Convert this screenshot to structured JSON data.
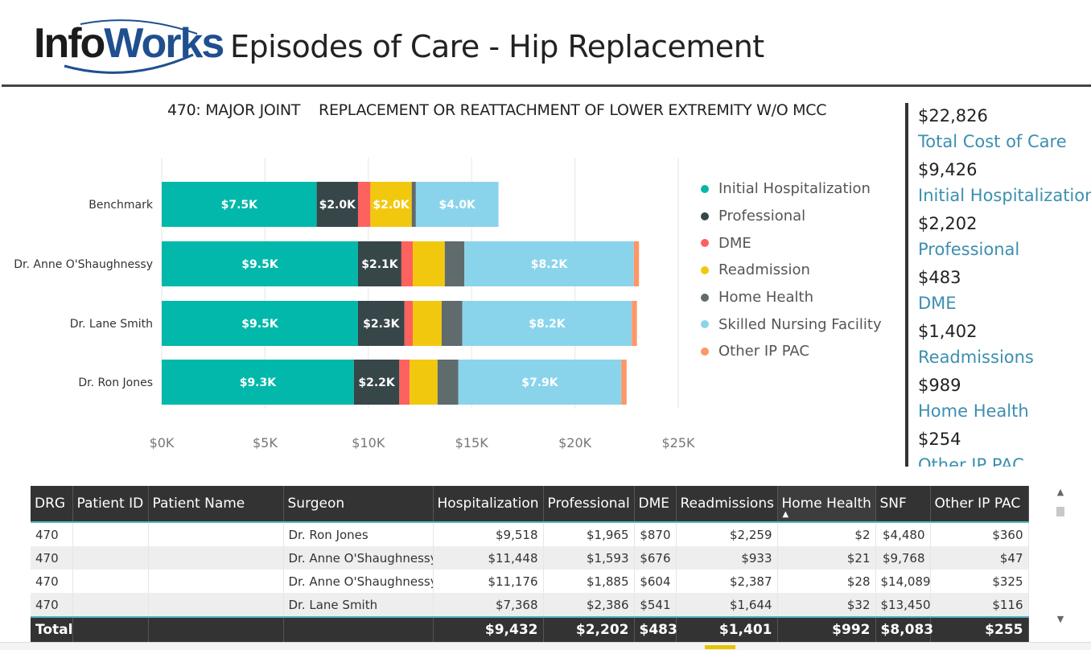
{
  "header": {
    "logo_text_a": "Info",
    "logo_text_b": "Works",
    "title": "Episodes of Care - Hip Replacement"
  },
  "chart": {
    "title": "470: MAJOR JOINT    REPLACEMENT OR REATTACHMENT OF LOWER EXTREMITY W/O MCC"
  },
  "chart_data": {
    "type": "bar",
    "orientation": "horizontal",
    "stacked": true,
    "title": "470: MAJOR JOINT    REPLACEMENT OR REATTACHMENT OF LOWER EXTREMITY W/O MCC",
    "categories": [
      "Benchmark",
      "Dr. Anne O'Shaughnessy",
      "Dr. Lane Smith",
      "Dr. Ron Jones"
    ],
    "xlim": [
      0,
      25000
    ],
    "ticks": [
      0,
      5000,
      10000,
      15000,
      20000,
      25000
    ],
    "tick_labels": [
      "$0K",
      "$5K",
      "$10K",
      "$15K",
      "$20K",
      "$25K"
    ],
    "grid": true,
    "legend_position": "right",
    "series": [
      {
        "name": "Initial Hospitalization",
        "color": "#01b8aa",
        "values": [
          7500,
          9500,
          9500,
          9300
        ],
        "labels": [
          "$7.5K",
          "$9.5K",
          "$9.5K",
          "$9.3K"
        ]
      },
      {
        "name": "Professional",
        "color": "#374649",
        "values": [
          2000,
          2100,
          2250,
          2200
        ],
        "labels": [
          "$2.0K",
          "$2.1K",
          "$2.3K",
          "$2.2K"
        ]
      },
      {
        "name": "DME",
        "color": "#fd625e",
        "values": [
          600,
          550,
          400,
          500
        ],
        "labels": [
          "",
          "",
          "",
          ""
        ]
      },
      {
        "name": "Readmission",
        "color": "#f2c80f",
        "values": [
          2000,
          1550,
          1400,
          1350
        ],
        "labels": [
          "$2.0K",
          "",
          "",
          ""
        ]
      },
      {
        "name": "Home Health",
        "color": "#5f6b6d",
        "values": [
          200,
          950,
          1000,
          1000
        ],
        "labels": [
          "",
          "",
          "",
          ""
        ]
      },
      {
        "name": "Skilled Nursing Facility",
        "color": "#8ad4eb",
        "values": [
          4000,
          8200,
          8200,
          7900
        ],
        "labels": [
          "$4.0K",
          "$8.2K",
          "$8.2K",
          "$7.9K"
        ]
      },
      {
        "name": "Other IP PAC",
        "color": "#fe9666",
        "values": [
          0,
          250,
          250,
          250
        ],
        "labels": [
          "",
          "",
          "",
          ""
        ]
      }
    ]
  },
  "kpis": [
    {
      "value": "$22,826",
      "label": "Total Cost of Care"
    },
    {
      "value": "$9,426",
      "label": "Initial Hospitalization"
    },
    {
      "value": "$2,202",
      "label": "Professional"
    },
    {
      "value": "$483",
      "label": "DME"
    },
    {
      "value": "$1,402",
      "label": "Readmissions"
    },
    {
      "value": "$989",
      "label": "Home Health"
    },
    {
      "value": "$254",
      "label": "Other IP PAC"
    }
  ],
  "table": {
    "columns": [
      "DRG",
      "Patient ID",
      "Patient Name",
      "Surgeon",
      "Hospitalization",
      "Professional",
      "DME",
      "Readmissions",
      "Home Health",
      "SNF",
      "Other IP PAC"
    ],
    "sorted_column": "Home Health",
    "rows": [
      [
        "470",
        "",
        "",
        "Dr. Ron Jones",
        "$9,518",
        "$1,965",
        "$870",
        "$2,259",
        "$2",
        "$4,480",
        "$360"
      ],
      [
        "470",
        "",
        "",
        "Dr. Anne O'Shaughnessy",
        "$11,448",
        "$1,593",
        "$676",
        "$933",
        "$21",
        "$9,768",
        "$47"
      ],
      [
        "470",
        "",
        "",
        "Dr. Anne O'Shaughnessy",
        "$11,176",
        "$1,885",
        "$604",
        "$2,387",
        "$28",
        "$14,089",
        "$325"
      ],
      [
        "470",
        "",
        "",
        "Dr. Lane Smith",
        "$7,368",
        "$2,386",
        "$541",
        "$1,644",
        "$32",
        "$13,450",
        "$116"
      ]
    ],
    "total": [
      "Total",
      "",
      "",
      "",
      "$9,432",
      "$2,202",
      "$483",
      "$1,401",
      "$992",
      "$8,083",
      "$255"
    ]
  },
  "colors": {
    "accent": "#01b8aa",
    "kpi_label": "#3c8fb0",
    "table_header": "#333333",
    "table_rule": "#4fb3bf"
  }
}
